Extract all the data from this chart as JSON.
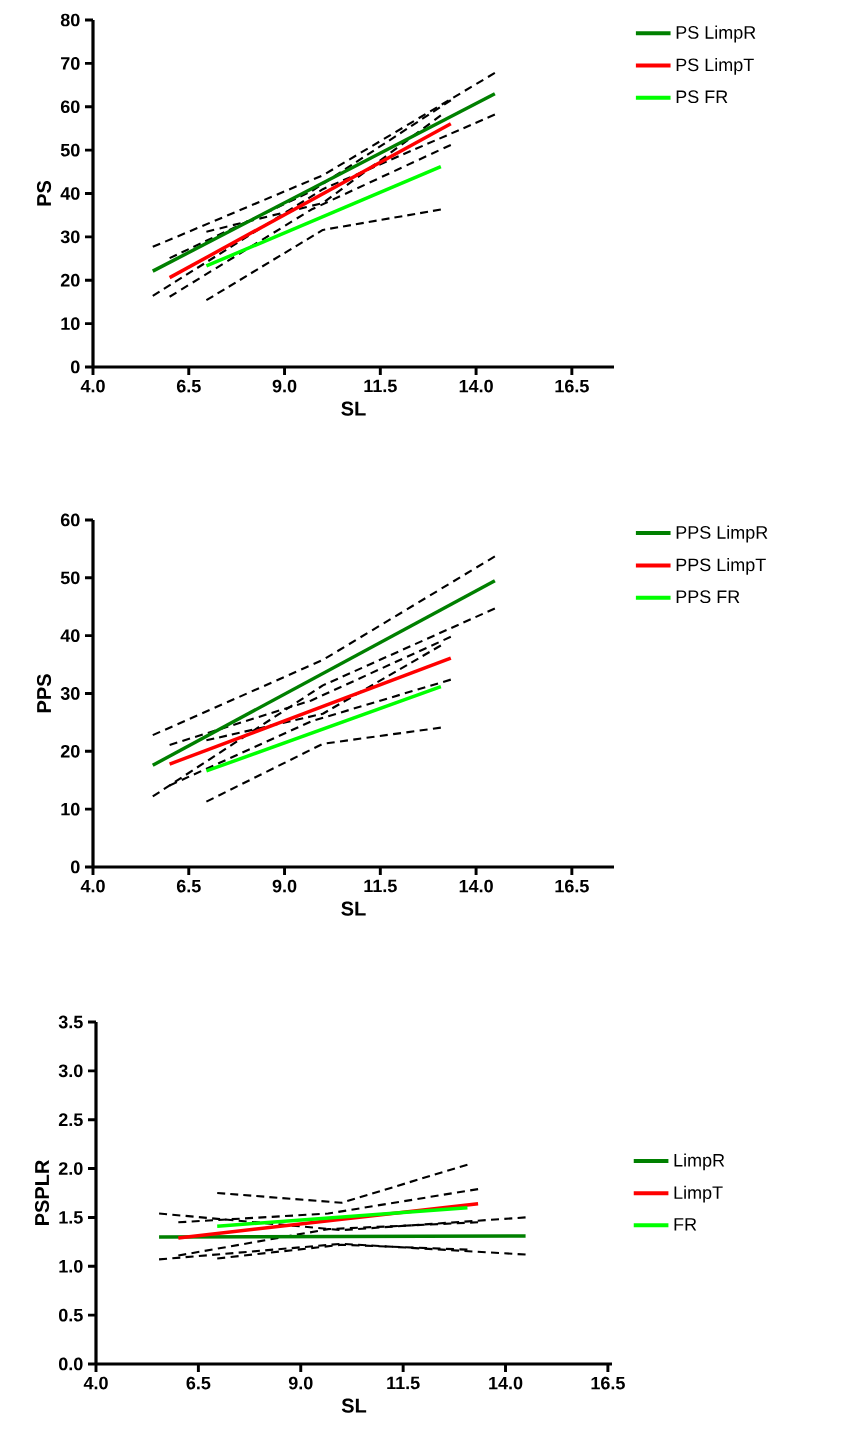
{
  "chart_data": [
    {
      "type": "line",
      "xlabel": "SL",
      "ylabel": "PS",
      "xlim": [
        4,
        17.6
      ],
      "ylim": [
        0,
        80
      ],
      "legend": "top right",
      "line_style": "solid",
      "xticks": [
        {
          "value": 4,
          "label": "4.0"
        },
        {
          "value": 6.5,
          "label": "6.5"
        },
        {
          "value": 9,
          "label": "9.0"
        },
        {
          "value": 11.5,
          "label": "11.5"
        },
        {
          "value": 14,
          "label": "14.0"
        },
        {
          "value": 16.5,
          "label": "16.5"
        }
      ],
      "yticks": [
        0,
        10,
        20,
        30,
        40,
        50,
        60,
        70,
        80
      ],
      "series": [
        {
          "color": "#000000",
          "line_style": "dashed",
          "x": [
            5.56,
            10.0,
            14.49
          ],
          "values": [
            16.4,
            41.0,
            58.2
          ]
        },
        {
          "color": "#000000",
          "line_style": "dashed",
          "x": [
            5.56,
            10.0,
            14.49
          ],
          "values": [
            27.7,
            44.2,
            67.8
          ]
        },
        {
          "color": "#000000",
          "line_style": "dashed",
          "x": [
            6.0,
            9.7,
            13.34
          ],
          "values": [
            16.2,
            36.3,
            51.2
          ]
        },
        {
          "color": "#000000",
          "line_style": "dashed",
          "x": [
            6.0,
            9.7,
            13.34
          ],
          "values": [
            25.1,
            40.5,
            61.5
          ]
        },
        {
          "color": "#000000",
          "line_style": "dashed",
          "x": [
            6.96,
            10.0,
            13.08
          ],
          "values": [
            15.4,
            31.6,
            36.3
          ]
        },
        {
          "color": "#000000",
          "line_style": "dashed",
          "x": [
            6.96,
            10.0,
            13.08
          ],
          "values": [
            31.2,
            37.8,
            58.0
          ]
        },
        {
          "name": "PS LimpR",
          "color": "#008000",
          "x": [
            5.56,
            14.49
          ],
          "values": [
            22.1,
            63.0
          ]
        },
        {
          "name": "PS LimpT",
          "color": "#ff0000",
          "x": [
            6.0,
            13.34
          ],
          "values": [
            20.6,
            56.1
          ]
        },
        {
          "name": "PS FR",
          "color": "#00ff00",
          "x": [
            6.96,
            13.08
          ],
          "values": [
            23.3,
            46.2
          ]
        }
      ]
    },
    {
      "type": "line",
      "xlabel": "SL",
      "ylabel": "PPS",
      "xlim": [
        4,
        17.6
      ],
      "ylim": [
        0,
        60
      ],
      "legend": "top right",
      "line_style": "solid",
      "xticks": [
        {
          "value": 4,
          "label": "4.0"
        },
        {
          "value": 6.5,
          "label": "6.5"
        },
        {
          "value": 9,
          "label": "9.0"
        },
        {
          "value": 11.5,
          "label": "11.5"
        },
        {
          "value": 14,
          "label": "14.0"
        },
        {
          "value": 16.5,
          "label": "16.5"
        }
      ],
      "yticks": [
        0,
        10,
        20,
        30,
        40,
        50,
        60
      ],
      "series": [
        {
          "color": "#000000",
          "line_style": "dashed",
          "x": [
            5.56,
            10.0,
            14.49
          ],
          "values": [
            12.2,
            31.4,
            44.7
          ]
        },
        {
          "color": "#000000",
          "line_style": "dashed",
          "x": [
            5.56,
            10.0,
            14.49
          ],
          "values": [
            22.8,
            35.8,
            53.7
          ]
        },
        {
          "color": "#000000",
          "line_style": "dashed",
          "x": [
            6.0,
            9.7,
            13.34
          ],
          "values": [
            14.1,
            25.2,
            32.4
          ]
        },
        {
          "color": "#000000",
          "line_style": "dashed",
          "x": [
            6.0,
            9.7,
            13.34
          ],
          "values": [
            21.1,
            28.8,
            39.8
          ]
        },
        {
          "color": "#000000",
          "line_style": "dashed",
          "x": [
            6.96,
            10.0,
            13.08
          ],
          "values": [
            11.3,
            21.3,
            24.1
          ]
        },
        {
          "color": "#000000",
          "line_style": "dashed",
          "x": [
            6.96,
            10.0,
            13.08
          ],
          "values": [
            21.9,
            26.5,
            38.3
          ]
        },
        {
          "name": "PPS LimpR",
          "color": "#008000",
          "x": [
            5.56,
            14.49
          ],
          "values": [
            17.6,
            49.5
          ]
        },
        {
          "name": "PPS LimpT",
          "color": "#ff0000",
          "x": [
            6.0,
            13.34
          ],
          "values": [
            17.8,
            36.1
          ]
        },
        {
          "name": "PPS FR",
          "color": "#00ff00",
          "x": [
            6.96,
            13.08
          ],
          "values": [
            16.6,
            31.2
          ]
        }
      ]
    },
    {
      "type": "line",
      "xlabel": "SL",
      "ylabel": "PSPLR",
      "xlim": [
        4,
        16.6
      ],
      "ylim": [
        0,
        3.5
      ],
      "legend": "right",
      "line_style": "solid",
      "xticks": [
        {
          "value": 4,
          "label": "4.0"
        },
        {
          "value": 6.5,
          "label": "6.5"
        },
        {
          "value": 9,
          "label": "9.0"
        },
        {
          "value": 11.5,
          "label": "11.5"
        },
        {
          "value": 14,
          "label": "14.0"
        },
        {
          "value": 16.5,
          "label": "16.5"
        }
      ],
      "yticks": [
        {
          "value": 0,
          "label": "0.0"
        },
        {
          "value": 0.5,
          "label": "0.5"
        },
        {
          "value": 1,
          "label": "1.0"
        },
        {
          "value": 1.5,
          "label": "1.5"
        },
        {
          "value": 2,
          "label": "2.0"
        },
        {
          "value": 2.5,
          "label": "2.5"
        },
        {
          "value": 3,
          "label": "3.0"
        },
        {
          "value": 3.5,
          "label": "3.5"
        }
      ],
      "series": [
        {
          "color": "#000000",
          "line_style": "dashed",
          "x": [
            5.54,
            10.0,
            14.49
          ],
          "values": [
            1.07,
            1.23,
            1.12
          ]
        },
        {
          "color": "#000000",
          "line_style": "dashed",
          "x": [
            5.54,
            10.0,
            14.49
          ],
          "values": [
            1.54,
            1.37,
            1.5
          ]
        },
        {
          "color": "#000000",
          "line_style": "dashed",
          "x": [
            6.01,
            9.67,
            13.33
          ],
          "values": [
            1.11,
            1.38,
            1.45
          ]
        },
        {
          "color": "#000000",
          "line_style": "dashed",
          "x": [
            6.01,
            9.67,
            13.33
          ],
          "values": [
            1.45,
            1.54,
            1.79
          ]
        },
        {
          "color": "#000000",
          "line_style": "dashed",
          "x": [
            6.96,
            10.0,
            13.07
          ],
          "values": [
            1.08,
            1.22,
            1.17
          ]
        },
        {
          "color": "#000000",
          "line_style": "dashed",
          "x": [
            6.96,
            10.0,
            13.07
          ],
          "values": [
            1.75,
            1.65,
            2.04
          ]
        },
        {
          "name": "LimpR",
          "color": "#008000",
          "x": [
            5.54,
            14.49
          ],
          "values": [
            1.3,
            1.31
          ]
        },
        {
          "name": "LimpT",
          "color": "#ff0000",
          "x": [
            6.01,
            13.33
          ],
          "values": [
            1.29,
            1.64
          ]
        },
        {
          "name": "FR",
          "color": "#00ff00",
          "x": [
            6.96,
            13.07
          ],
          "values": [
            1.41,
            1.6
          ]
        }
      ]
    }
  ]
}
